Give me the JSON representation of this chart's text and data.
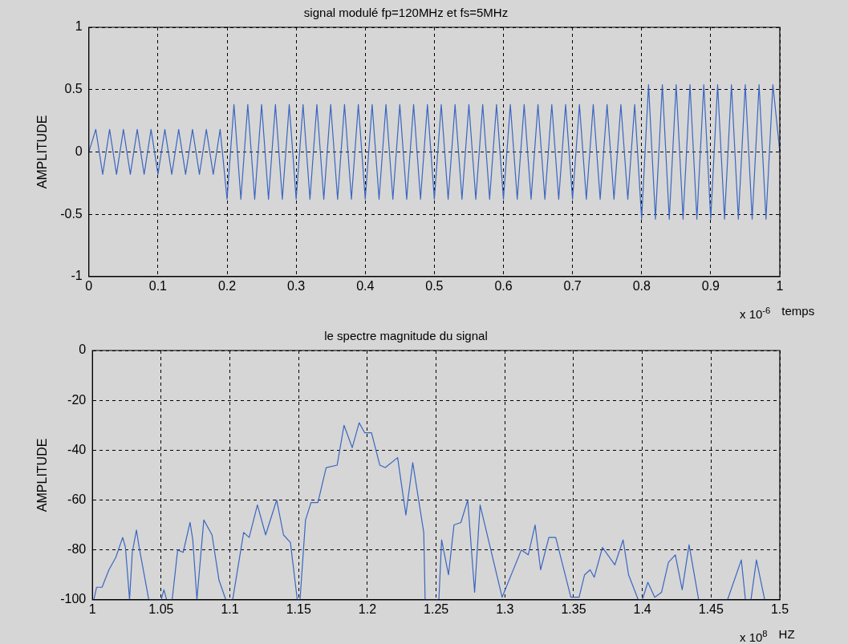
{
  "chart_data": [
    {
      "type": "line",
      "title": "signal modulé fp=120MHz et fs=5MHz",
      "xlabel": "temps",
      "ylabel": "AMPLITUDE",
      "annotations": [
        "x 10$^{-6}$"
      ],
      "xlim": [
        0,
        1
      ],
      "xticks": [
        0,
        0.1,
        0.2,
        0.3,
        0.4,
        0.5,
        0.6,
        0.7,
        0.8,
        0.9,
        1
      ],
      "ylim": [
        -1,
        1
      ],
      "yticks": [
        -1,
        -0.5,
        0,
        0.5,
        1
      ],
      "grid": true,
      "marker": "none",
      "line_style": "solid",
      "series": [
        {
          "color": "#3a66c0",
          "x": [
            0,
            0.01,
            0.02,
            0.03,
            0.04,
            0.05,
            0.06,
            0.07,
            0.08,
            0.09,
            0.1,
            0.11,
            0.12,
            0.13,
            0.14,
            0.15,
            0.16,
            0.17,
            0.18,
            0.19,
            0.2,
            0.21,
            0.22,
            0.23,
            0.24,
            0.25,
            0.26,
            0.27,
            0.28,
            0.29,
            0.3,
            0.31,
            0.32,
            0.33,
            0.34,
            0.35,
            0.36,
            0.37,
            0.38,
            0.39,
            0.4,
            0.41,
            0.42,
            0.43,
            0.44,
            0.45,
            0.46,
            0.47,
            0.48,
            0.49,
            0.5,
            0.51,
            0.52,
            0.53,
            0.54,
            0.55,
            0.56,
            0.57,
            0.58,
            0.59,
            0.6,
            0.61,
            0.62,
            0.63,
            0.64,
            0.65,
            0.66,
            0.67,
            0.68,
            0.69,
            0.7,
            0.71,
            0.72,
            0.73,
            0.74,
            0.75,
            0.76,
            0.77,
            0.78,
            0.79,
            0.8,
            0.81,
            0.82,
            0.83,
            0.84,
            0.85,
            0.86,
            0.87,
            0.88,
            0.89,
            0.9,
            0.91,
            0.92,
            0.93,
            0.94,
            0.95,
            0.96,
            0.97,
            0.98,
            0.99,
            1
          ],
          "values": [
            0,
            0.18,
            -0.18,
            0.18,
            -0.18,
            0.18,
            -0.18,
            0.18,
            -0.18,
            0.18,
            -0.18,
            0.18,
            -0.18,
            0.18,
            -0.18,
            0.18,
            -0.18,
            0.18,
            -0.18,
            0.18,
            -0.38,
            0.38,
            -0.38,
            0.38,
            -0.38,
            0.38,
            -0.38,
            0.38,
            -0.38,
            0.38,
            -0.38,
            0.38,
            -0.38,
            0.38,
            -0.38,
            0.38,
            -0.38,
            0.38,
            -0.38,
            0.38,
            -0.38,
            0.38,
            -0.38,
            0.38,
            -0.38,
            0.38,
            -0.38,
            0.38,
            -0.38,
            0.38,
            -0.38,
            0.38,
            -0.38,
            0.38,
            -0.38,
            0.38,
            -0.38,
            0.38,
            -0.38,
            0.38,
            -0.38,
            0.38,
            -0.38,
            0.38,
            -0.38,
            0.38,
            -0.38,
            0.38,
            -0.38,
            0.38,
            -0.38,
            0.38,
            -0.38,
            0.38,
            -0.38,
            0.38,
            -0.38,
            0.38,
            -0.38,
            0.38,
            -0.54,
            0.54,
            -0.54,
            0.54,
            -0.54,
            0.54,
            -0.54,
            0.54,
            -0.54,
            0.54,
            -0.54,
            0.54,
            -0.54,
            0.54,
            -0.54,
            0.54,
            -0.54,
            0.54,
            -0.54,
            0.54,
            0
          ]
        }
      ]
    },
    {
      "type": "line",
      "title": "le spectre magnitude du signal",
      "xlabel": "HZ",
      "ylabel": "AMPLITUDE",
      "annotations": [
        "x 10$^{8}$"
      ],
      "xlim": [
        1,
        1.5
      ],
      "xticks": [
        1,
        1.05,
        1.1,
        1.15,
        1.2,
        1.25,
        1.3,
        1.35,
        1.4,
        1.45,
        1.5
      ],
      "ylim": [
        -100,
        0
      ],
      "yticks": [
        -100,
        -80,
        -60,
        -40,
        -20,
        0
      ],
      "grid": true,
      "marker": "none",
      "line_style": "solid",
      "series": [
        {
          "color": "#3a66c0",
          "x": [
            1.001,
            1.003,
            1.007,
            1.012,
            1.017,
            1.022,
            1.024,
            1.027,
            1.029,
            1.032,
            1.034,
            1.041,
            1.05,
            1.052,
            1.054,
            1.058,
            1.062,
            1.066,
            1.071,
            1.073,
            1.076,
            1.081,
            1.087,
            1.092,
            1.097,
            1.102,
            1.11,
            1.114,
            1.12,
            1.126,
            1.134,
            1.139,
            1.144,
            1.149,
            1.151,
            1.155,
            1.159,
            1.164,
            1.17,
            1.178,
            1.183,
            1.189,
            1.194,
            1.198,
            1.203,
            1.209,
            1.213,
            1.222,
            1.228,
            1.233,
            1.241,
            1.242,
            1.252,
            1.254,
            1.259,
            1.263,
            1.268,
            1.273,
            1.278,
            1.282,
            1.298,
            1.312,
            1.317,
            1.322,
            1.326,
            1.332,
            1.337,
            1.348,
            1.354,
            1.358,
            1.362,
            1.365,
            1.371,
            1.38,
            1.386,
            1.39,
            1.397,
            1.4,
            1.404,
            1.409,
            1.414,
            1.419,
            1.424,
            1.429,
            1.434,
            1.441,
            1.462,
            1.472,
            1.475,
            1.479,
            1.483,
            1.489
          ],
          "values": [
            -100,
            -95,
            -95,
            -88,
            -83,
            -75,
            -79,
            -100,
            -81,
            -72,
            -79,
            -100,
            -100,
            -96,
            -100,
            -100,
            -80,
            -81,
            -69,
            -76,
            -100,
            -68,
            -74,
            -92,
            -100,
            -100,
            -73,
            -75,
            -62,
            -74,
            -60,
            -74,
            -77,
            -100,
            -100,
            -68,
            -61,
            -61,
            -47,
            -46,
            -30,
            -39,
            -29,
            -33,
            -33,
            -46,
            -47,
            -43,
            -66,
            -45,
            -73,
            -100,
            -100,
            -76,
            -90,
            -70,
            -69,
            -60,
            -97,
            -62,
            -99,
            -80,
            -82,
            -70,
            -88,
            -75,
            -75,
            -99,
            -99,
            -90,
            -88,
            -91,
            -79,
            -86,
            -76,
            -90,
            -100,
            -100,
            -93,
            -99,
            -97,
            -85,
            -82,
            -96,
            -78,
            -100,
            -100,
            -84,
            -100,
            -100,
            -84,
            -100
          ]
        }
      ]
    }
  ]
}
